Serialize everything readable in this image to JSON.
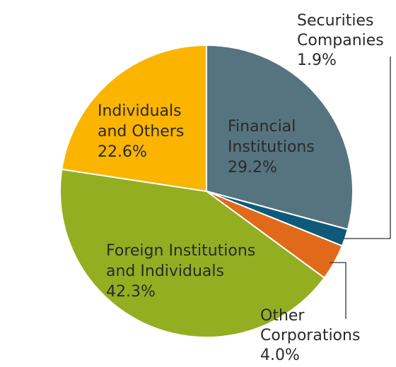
{
  "chart_data": {
    "type": "pie",
    "title": "",
    "slices": [
      {
        "name": "Financial Institutions",
        "line1": "Financial",
        "line2": "Institutions",
        "value": 29.2,
        "display": "29.2%",
        "color": "#56747f"
      },
      {
        "name": "Securities Companies",
        "line1": "Securities",
        "line2": "Companies",
        "value": 1.9,
        "display": "1.9%",
        "color": "#0e5a78"
      },
      {
        "name": "Other Corporations",
        "line1": "Other",
        "line2": "Corporations",
        "value": 4.0,
        "display": "4.0%",
        "color": "#e06a1a"
      },
      {
        "name": "Foreign Institutions and Individuals",
        "line1": "Foreign Institutions",
        "line2": "and Individuals",
        "value": 42.3,
        "display": "42.3%",
        "color": "#94ae22"
      },
      {
        "name": "Individuals and Others",
        "line1": "Individuals",
        "line2": "and Others",
        "value": 22.6,
        "display": "22.6%",
        "color": "#fbb400"
      }
    ]
  }
}
